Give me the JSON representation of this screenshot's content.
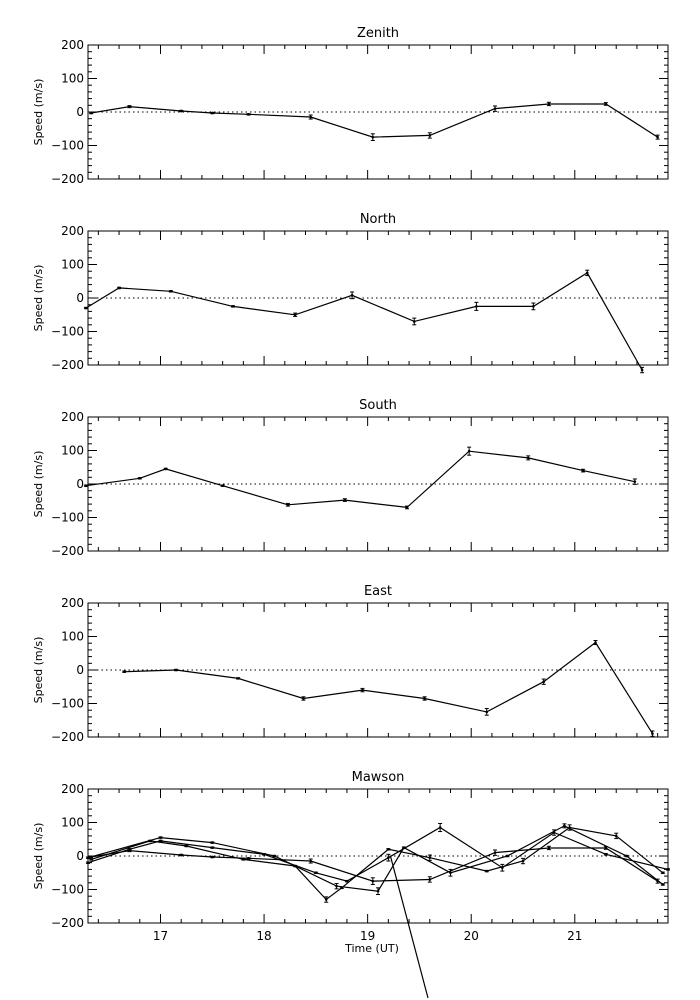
{
  "chart_data": [
    {
      "type": "line",
      "title": "Zenith",
      "ylabel": "Speed (m/s)",
      "xlabel": "",
      "ylim": [
        -200,
        200
      ],
      "xlim": [
        16.3,
        21.9
      ],
      "yticks": [
        "200",
        "100",
        "0",
        "−100",
        "−200"
      ],
      "xticks": [],
      "series": [
        {
          "x": [
            16.33,
            16.7,
            17.2,
            17.5,
            17.85,
            18.45,
            19.05,
            19.6,
            20.23,
            20.75,
            21.3,
            21.8
          ],
          "y": [
            -3,
            16,
            3,
            -3,
            -7,
            -15,
            -75,
            -70,
            10,
            24,
            24,
            -75
          ],
          "err": [
            0,
            3,
            0,
            0,
            0,
            6,
            10,
            8,
            8,
            5,
            4,
            6
          ]
        }
      ]
    },
    {
      "type": "line",
      "title": "North",
      "ylabel": "Speed (m/s)",
      "xlabel": "",
      "ylim": [
        -200,
        200
      ],
      "xlim": [
        16.3,
        21.9
      ],
      "yticks": [
        "200",
        "100",
        "0",
        "−100",
        "−200"
      ],
      "xticks": [],
      "series": [
        {
          "x": [
            16.28,
            16.6,
            17.1,
            17.7,
            18.3,
            18.85,
            19.45,
            20.05,
            20.6,
            21.12,
            21.65
          ],
          "y": [
            -30,
            30,
            20,
            -25,
            -50,
            8,
            -70,
            -25,
            -25,
            75,
            -215
          ],
          "err": [
            0,
            0,
            0,
            0,
            5,
            10,
            10,
            12,
            10,
            8,
            8
          ]
        }
      ]
    },
    {
      "type": "line",
      "title": "South",
      "ylabel": "Speed (m/s)",
      "xlabel": "",
      "ylim": [
        -200,
        200
      ],
      "xlim": [
        16.3,
        21.9
      ],
      "yticks": [
        "200",
        "100",
        "0",
        "−100",
        "−200"
      ],
      "xticks": [],
      "series": [
        {
          "x": [
            16.28,
            16.8,
            17.05,
            17.6,
            18.23,
            18.78,
            19.38,
            19.98,
            20.55,
            21.08,
            21.58
          ],
          "y": [
            -5,
            17,
            45,
            -5,
            -62,
            -48,
            -70,
            98,
            78,
            40,
            7
          ],
          "err": [
            0,
            0,
            0,
            0,
            4,
            4,
            4,
            12,
            6,
            4,
            8
          ]
        }
      ]
    },
    {
      "type": "line",
      "title": "East",
      "ylabel": "Speed (m/s)",
      "xlabel": "",
      "ylim": [
        -200,
        200
      ],
      "xlim": [
        16.3,
        21.9
      ],
      "yticks": [
        "200",
        "100",
        "0",
        "−100",
        "−200"
      ],
      "xticks": [],
      "series": [
        {
          "x": [
            16.65,
            17.15,
            17.75,
            18.38,
            18.95,
            19.55,
            20.15,
            20.7,
            21.2,
            21.75
          ],
          "y": [
            -5,
            0,
            -25,
            -85,
            -60,
            -85,
            -125,
            -35,
            82,
            -190
          ],
          "err": [
            0,
            0,
            0,
            5,
            5,
            5,
            10,
            8,
            6,
            8
          ]
        }
      ]
    },
    {
      "type": "line",
      "title": "Mawson",
      "ylabel": "Speed (m/s)",
      "xlabel": "Time (UT)",
      "ylim": [
        -200,
        200
      ],
      "xlim": [
        16.3,
        21.9
      ],
      "yticks": [
        "200",
        "100",
        "0",
        "−100",
        "−200"
      ],
      "xticks": [
        "17",
        "18",
        "19",
        "20",
        "21"
      ],
      "series": [
        {
          "x": [
            16.33,
            16.7,
            17.2,
            17.5,
            17.85,
            18.45,
            19.05,
            19.6,
            20.23,
            20.75,
            21.3,
            21.8
          ],
          "y": [
            -3,
            16,
            3,
            -3,
            -7,
            -15,
            -75,
            -70,
            10,
            24,
            24,
            -75
          ],
          "err": [
            0,
            3,
            0,
            0,
            0,
            6,
            10,
            8,
            8,
            5,
            4,
            6
          ]
        },
        {
          "x": [
            16.3,
            16.7,
            17.0,
            17.5,
            18.0,
            18.5,
            18.8,
            19.2,
            19.7,
            20.3,
            20.8,
            21.3,
            21.9
          ],
          "y": [
            -20,
            20,
            45,
            25,
            5,
            -50,
            -75,
            -5,
            85,
            -35,
            70,
            5,
            -40
          ],
          "err": [
            0,
            0,
            0,
            0,
            0,
            0,
            0,
            10,
            12,
            10,
            8,
            0,
            0
          ]
        },
        {
          "x": [
            16.33,
            16.9,
            17.25,
            17.8,
            18.3,
            18.6,
            18.75,
            19.2,
            19.6,
            20.15,
            20.5,
            20.95,
            21.4,
            21.85
          ],
          "y": [
            -10,
            45,
            30,
            -10,
            -30,
            -130,
            -95,
            20,
            -5,
            -45,
            -15,
            85,
            60,
            -50
          ],
          "err": [
            0,
            0,
            0,
            0,
            0,
            8,
            0,
            0,
            8,
            0,
            8,
            8,
            8,
            0
          ]
        },
        {
          "x": [
            16.3,
            17.0,
            17.5,
            18.1,
            18.7,
            19.1,
            19.35,
            19.8,
            20.35,
            20.9,
            21.5,
            21.85
          ],
          "y": [
            -5,
            55,
            40,
            0,
            -90,
            -105,
            25,
            -50,
            0,
            90,
            0,
            -85
          ],
          "err": [
            0,
            0,
            0,
            0,
            8,
            10,
            0,
            10,
            0,
            6,
            0,
            0
          ]
        }
      ]
    }
  ]
}
